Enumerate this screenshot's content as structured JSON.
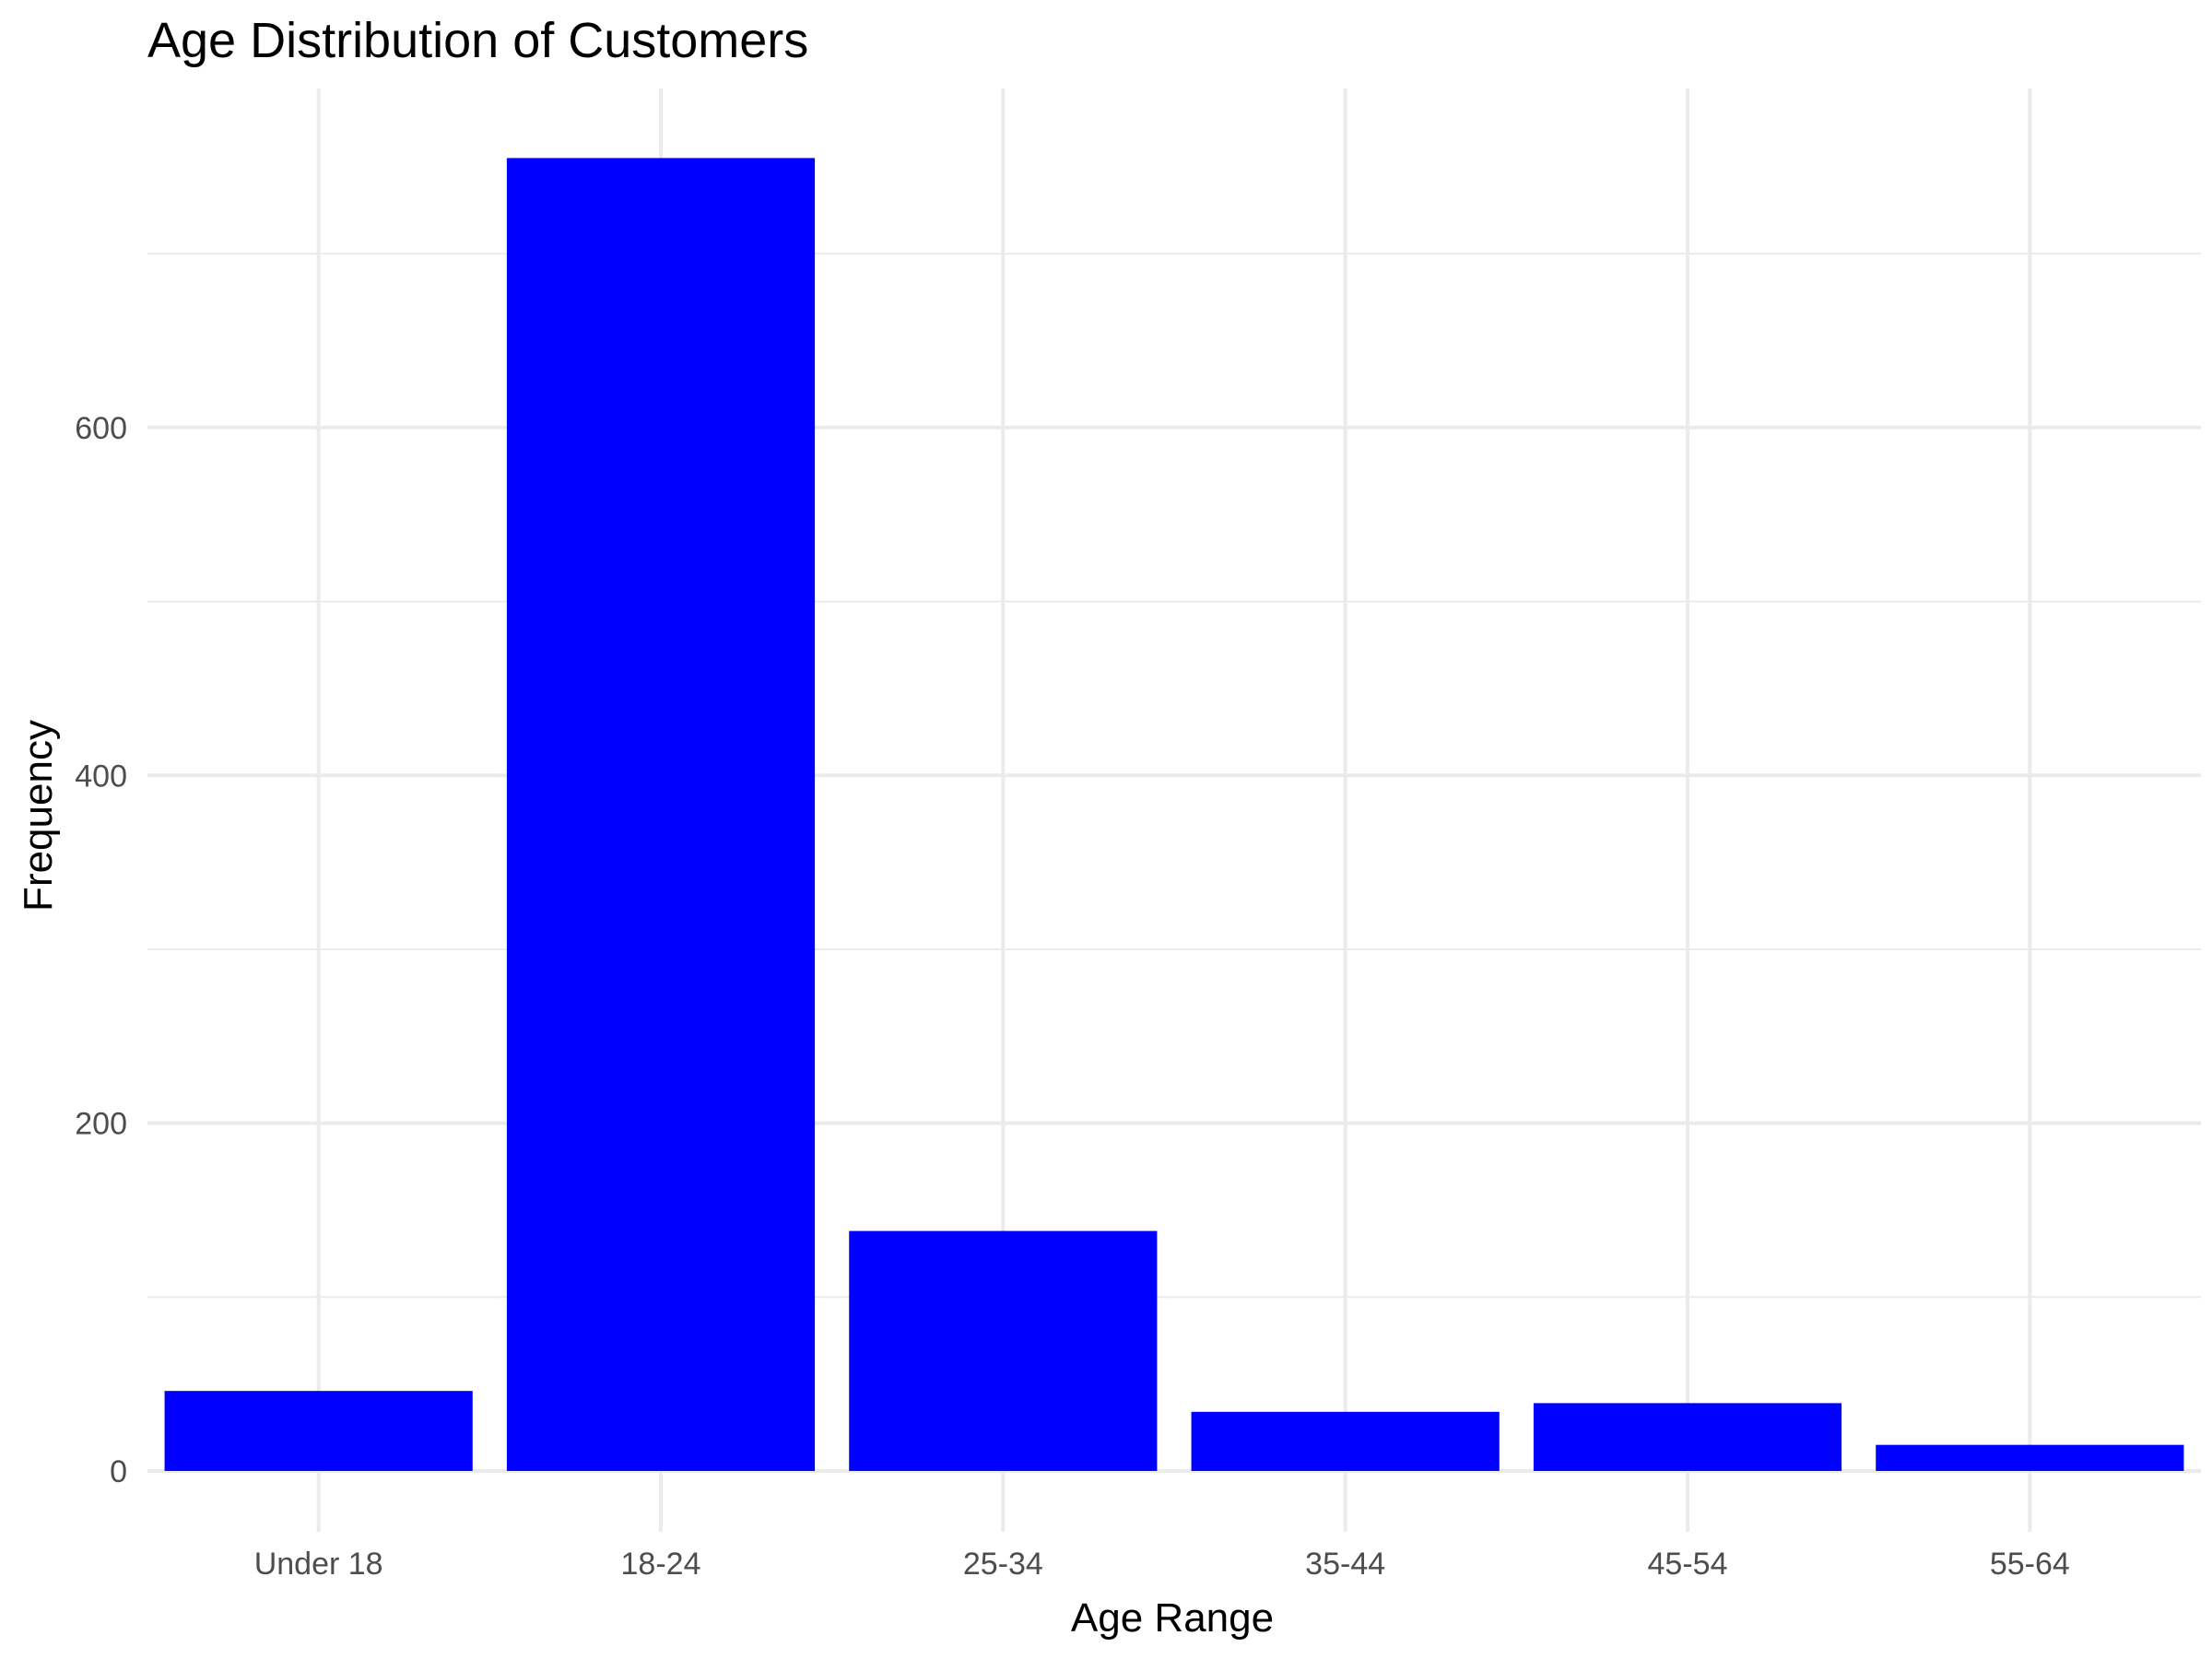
{
  "chart_data": {
    "type": "bar",
    "title": "Age Distribution of Customers",
    "xlabel": "Age Range",
    "ylabel": "Frequency",
    "categories": [
      "Under 18",
      "18-24",
      "25-34",
      "35-44",
      "45-54",
      "55-64"
    ],
    "values": [
      46,
      755,
      138,
      34,
      39,
      15
    ],
    "ylim": [
      -35,
      795
    ],
    "yticks": [
      0,
      200,
      400,
      600
    ],
    "yminor": [
      100,
      300,
      500,
      700
    ],
    "bar_color": "#0000ff",
    "grid": true,
    "legend": "none"
  }
}
